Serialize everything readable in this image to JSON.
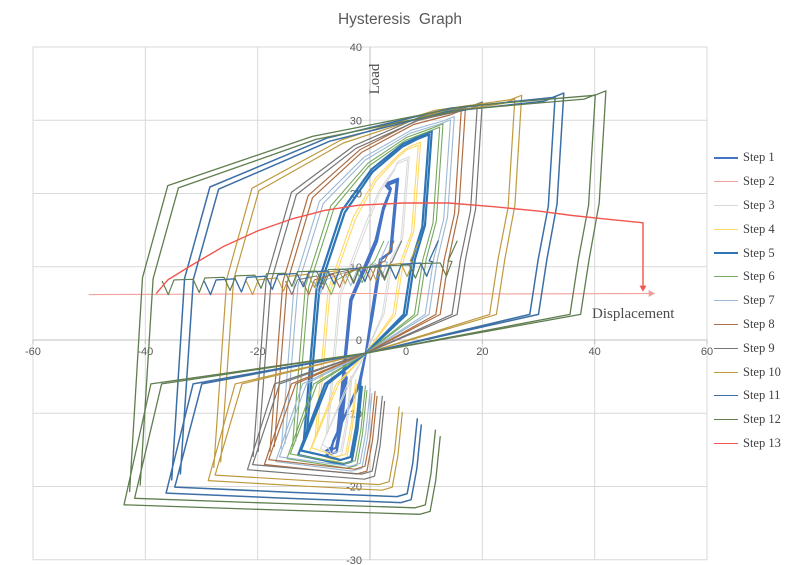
{
  "header": {
    "title": "Hysteresis  Graph"
  },
  "axes": {
    "x": {
      "title": "Displacement",
      "min": -60,
      "max": 60,
      "ticks": [
        -60,
        -40,
        -20,
        0,
        20,
        40,
        60
      ]
    },
    "y": {
      "title": "Load",
      "min": -30,
      "max": 40,
      "ticks": [
        40,
        30,
        20,
        10,
        0,
        -10,
        -20,
        -30
      ]
    }
  },
  "colors": {
    "grid": "#d9d9d9",
    "axis": "#bfbfbf",
    "tick_label": "#595959",
    "title": "#595959",
    "legend_text": "#404040"
  },
  "chart_data": {
    "type": "line",
    "title": "Hysteresis  Graph",
    "xlabel": "Displacement",
    "ylabel": "Load",
    "xlim": [
      -60,
      60
    ],
    "ylim": [
      -30,
      40
    ],
    "grid": true,
    "legend_position": "right",
    "series": [
      {
        "name": "Step 1",
        "color": "#4472c4",
        "width": 2.2,
        "kind": "loop",
        "amplitude_disp": 5,
        "peak_load": 22,
        "valley_load": -14.1
      },
      {
        "name": "Step 2",
        "color": "#f2a29b",
        "width": 1.1,
        "kind": "flat_line",
        "y": 6.2,
        "x_start": -50,
        "x_end": 50.5,
        "arrow_right": true
      },
      {
        "name": "Step 3",
        "color": "#d8d8d8",
        "width": 1.0,
        "kind": "loop",
        "amplitude_disp": 7,
        "peak_load": 25,
        "valley_load": -14.5
      },
      {
        "name": "Step 4",
        "color": "#ffd966",
        "width": 1.1,
        "kind": "loop",
        "amplitude_disp": 9,
        "peak_load": 27,
        "valley_load": -15.0
      },
      {
        "name": "Step 5",
        "color": "#2e75b6",
        "width": 2.2,
        "kind": "loop",
        "amplitude_disp": 11,
        "peak_load": 28.5,
        "valley_load": -15.4
      },
      {
        "name": "Step 6",
        "color": "#76a85e",
        "width": 1.1,
        "kind": "loop",
        "amplitude_disp": 13,
        "peak_load": 29.5,
        "valley_load": -15.9
      },
      {
        "name": "Step 7",
        "color": "#9cb8d2",
        "width": 1.1,
        "kind": "loop",
        "amplitude_disp": 15,
        "peak_load": 30.5,
        "valley_load": -16.3
      },
      {
        "name": "Step 8",
        "color": "#ad6e44",
        "width": 1.2,
        "kind": "loop",
        "amplitude_disp": 17,
        "peak_load": 31.8,
        "valley_load": -16.7
      },
      {
        "name": "Step 9",
        "color": "#757575",
        "width": 1.2,
        "kind": "loop",
        "amplitude_disp": 20,
        "peak_load": 32.5,
        "valley_load": -17.4
      },
      {
        "name": "Step 10",
        "color": "#be9a3f",
        "width": 1.2,
        "kind": "loop",
        "amplitude_disp": 27,
        "peak_load": 33.4,
        "valley_load": -18.9
      },
      {
        "name": "Step 11",
        "color": "#3c6fa5",
        "width": 1.5,
        "kind": "loop",
        "amplitude_disp": 34.5,
        "peak_load": 33.7,
        "valley_load": -20.6
      },
      {
        "name": "Step 12",
        "color": "#5f7d4f",
        "width": 1.3,
        "kind": "loop",
        "amplitude_disp": 42,
        "peak_load": 34,
        "valley_load": -22.2
      },
      {
        "name": "Step 13",
        "color": "#f1564f",
        "width": 1.4,
        "kind": "backbone",
        "points": [
          [
            -38,
            6.4
          ],
          [
            -36,
            8.2
          ],
          [
            -32,
            10.1
          ],
          [
            -26,
            12.8
          ],
          [
            -20,
            14.9
          ],
          [
            -14,
            16.5
          ],
          [
            -8,
            17.7
          ],
          [
            -2,
            18.4
          ],
          [
            6,
            18.7
          ],
          [
            14,
            18.7
          ],
          [
            22,
            18.2
          ],
          [
            30,
            17.6
          ],
          [
            36,
            17.0
          ],
          [
            42,
            16.5
          ],
          [
            46,
            16.2
          ],
          [
            48.6,
            16.0
          ]
        ],
        "drop_x": 48.6,
        "drop_to": 6.6,
        "arrow": "down"
      }
    ]
  }
}
